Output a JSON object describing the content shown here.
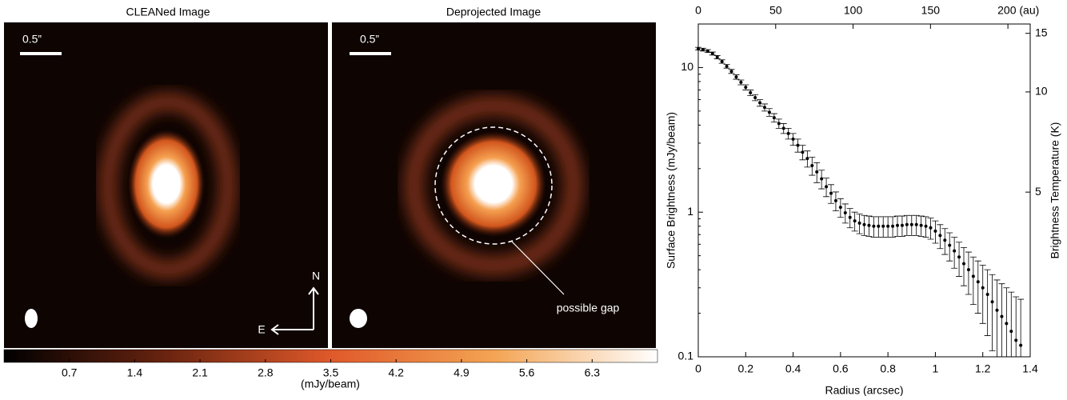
{
  "panels": [
    {
      "title": "CLEANed Image",
      "scale_bar": "0.5”"
    },
    {
      "title": "Deprojected Image",
      "scale_bar": "0.5”"
    }
  ],
  "compass": {
    "north": "N",
    "east": "E"
  },
  "annotation": "possible gap",
  "colorbar": {
    "lim": [
      0,
      7.0
    ],
    "ticks": [
      0.7,
      1.4,
      2.1,
      2.8,
      3.5,
      4.2,
      4.9,
      5.6,
      6.3
    ],
    "label": "(mJy/beam)"
  },
  "chart_data": {
    "type": "scatter",
    "xlabel": "Radius (arcsec)",
    "ylabel": "Surface Brightness (mJy/beam)",
    "y2label": "Brightness Temperature (K)",
    "x": [
      0,
      0.02,
      0.04,
      0.06,
      0.08,
      0.1,
      0.12,
      0.14,
      0.16,
      0.18,
      0.2,
      0.22,
      0.24,
      0.26,
      0.28,
      0.3,
      0.32,
      0.34,
      0.36,
      0.38,
      0.4,
      0.42,
      0.44,
      0.46,
      0.48,
      0.5,
      0.52,
      0.54,
      0.56,
      0.58,
      0.6,
      0.62,
      0.64,
      0.66,
      0.68,
      0.7,
      0.72,
      0.74,
      0.76,
      0.78,
      0.8,
      0.82,
      0.84,
      0.86,
      0.88,
      0.9,
      0.92,
      0.94,
      0.96,
      0.98,
      1.0,
      1.02,
      1.04,
      1.06,
      1.08,
      1.1,
      1.12,
      1.14,
      1.16,
      1.18,
      1.2,
      1.22,
      1.24,
      1.26,
      1.28,
      1.3,
      1.32,
      1.34,
      1.36
    ],
    "values": [
      13.5,
      13.3,
      13,
      12.5,
      11.8,
      11,
      10.2,
      9.4,
      8.6,
      7.9,
      7.3,
      6.7,
      6.2,
      5.7,
      5.3,
      4.9,
      4.5,
      4.1,
      3.8,
      3.5,
      3.2,
      2.9,
      2.6,
      2.35,
      2.1,
      1.9,
      1.7,
      1.5,
      1.35,
      1.2,
      1.08,
      0.99,
      0.92,
      0.87,
      0.84,
      0.82,
      0.81,
      0.8,
      0.8,
      0.8,
      0.8,
      0.8,
      0.81,
      0.81,
      0.82,
      0.82,
      0.82,
      0.81,
      0.8,
      0.78,
      0.74,
      0.69,
      0.64,
      0.59,
      0.54,
      0.49,
      0.44,
      0.4,
      0.36,
      0.33,
      0.3,
      0.27,
      0.24,
      0.21,
      0.19,
      0.17,
      0.15,
      0.13,
      0.12
    ],
    "errors": [
      0.3,
      0.3,
      0.3,
      0.3,
      0.3,
      0.3,
      0.3,
      0.3,
      0.3,
      0.3,
      0.3,
      0.3,
      0.3,
      0.3,
      0.3,
      0.3,
      0.3,
      0.3,
      0.3,
      0.3,
      0.3,
      0.3,
      0.3,
      0.3,
      0.3,
      0.3,
      0.25,
      0.22,
      0.2,
      0.18,
      0.16,
      0.15,
      0.14,
      0.13,
      0.13,
      0.13,
      0.13,
      0.13,
      0.13,
      0.13,
      0.13,
      0.13,
      0.13,
      0.13,
      0.13,
      0.13,
      0.13,
      0.13,
      0.13,
      0.13,
      0.13,
      0.13,
      0.13,
      0.13,
      0.13,
      0.13,
      0.13,
      0.13,
      0.13,
      0.13,
      0.13,
      0.13,
      0.13,
      0.13,
      0.13,
      0.13,
      0.13,
      0.13,
      0.13
    ],
    "color": "#000000",
    "xlim": [
      0,
      1.4
    ],
    "xticks": [
      0,
      0.2,
      0.4,
      0.6,
      0.8,
      1,
      1.2,
      1.4
    ],
    "ylim": [
      0.1,
      20
    ],
    "yticks": [
      0.1,
      1,
      10
    ],
    "ylog": true,
    "x2lim": [
      0,
      214.4
    ],
    "x2ticks": [
      0,
      50,
      100,
      150,
      {
        "value": 200,
        "label": "200 (au)"
      }
    ],
    "y2lim": [
      1.6,
      16
    ],
    "y2ticks": [
      5,
      10,
      15
    ],
    "y2log": true
  }
}
